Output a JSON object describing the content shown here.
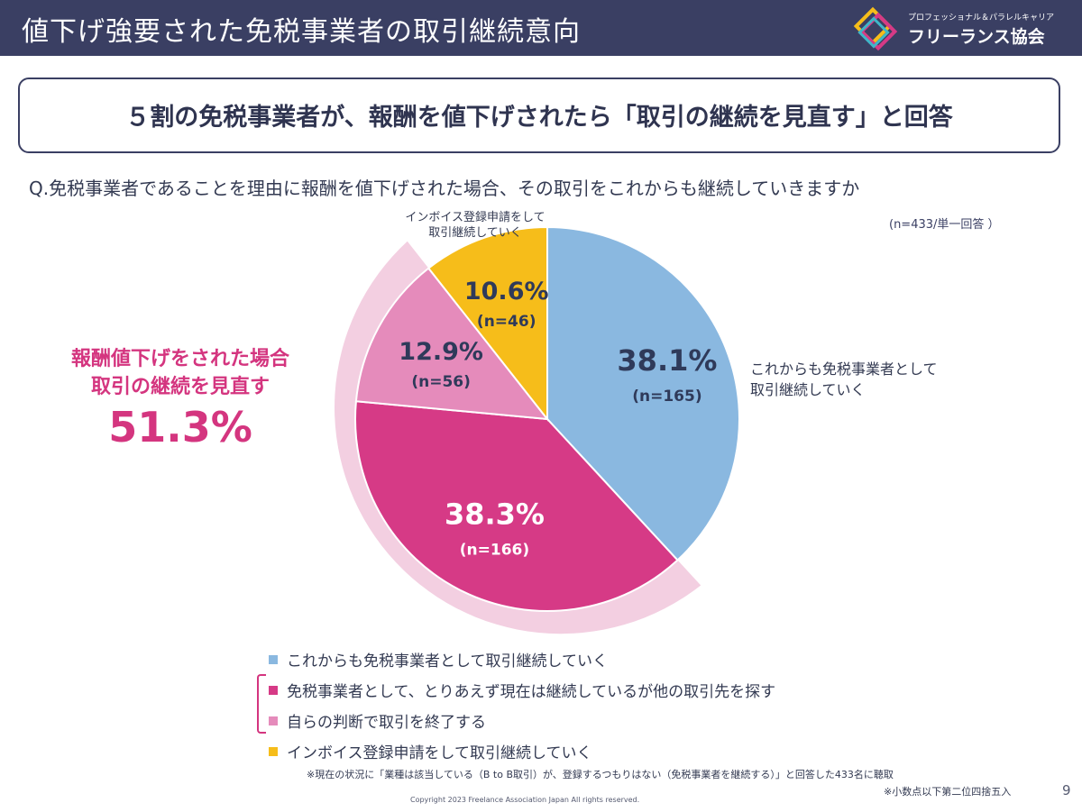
{
  "header": {
    "title": "値下げ強要された免税事業者の取引継続意向",
    "logo_sub": "プロフェッショナル＆パラレルキャリア",
    "logo_name": "フリーランス協会"
  },
  "headline": "５割の免税事業者が、報酬を値下げされたら「取引の継続を見直す」と回答",
  "question": "Q.免税事業者であることを理由に報酬を値下げされた場合、その取引をこれからも継続していきますか",
  "sample_note": "(n=433/単一回答 ）",
  "callouts": {
    "invoice": [
      "インボイス登録申請をして",
      "取引継続していく"
    ],
    "continue": [
      "これからも免税事業者として",
      "取引継続していく"
    ]
  },
  "emphasis": {
    "line1": "報酬値下げをされた場合",
    "line2": "取引の継続を見直す",
    "value": "51.3%"
  },
  "chart_data": {
    "type": "pie",
    "start": "12 o'clock, clockwise",
    "slices": [
      {
        "label": "これからも免税事業者として取引継続していく",
        "percent": 38.1,
        "pct_text": "38.1%",
        "n_text": "(n=165)",
        "color": "#8ab8e0",
        "text_color": "#2f3a5a"
      },
      {
        "label": "免税事業者として、とりあえず現在は継続しているが他の取引先を探す",
        "percent": 38.3,
        "pct_text": "38.3%",
        "n_text": "(n=166)",
        "color": "#d63a86",
        "text_color": "#ffffff"
      },
      {
        "label": "自らの判断で取引を終了する",
        "percent": 12.9,
        "pct_text": "12.9%",
        "n_text": "(n=56)",
        "color": "#e58bbb",
        "text_color": "#2f3a5a"
      },
      {
        "label": "インボイス登録申請をして取引継続していく",
        "percent": 10.6,
        "pct_text": "10.6%",
        "n_text": "(n=46)",
        "color": "#f6bd1a",
        "text_color": "#2f3a5a"
      }
    ],
    "highlight_color": "#f3cfe1"
  },
  "legend": [
    {
      "label": "これからも免税事業者として取引継続していく",
      "color": "#8ab8e0"
    },
    {
      "label": "免税事業者として、とりあえず現在は継続しているが他の取引先を探す",
      "color": "#d63a86"
    },
    {
      "label": "自らの判断で取引を終了する",
      "color": "#e58bbb"
    },
    {
      "label": "インボイス登録申請をして取引継続していく",
      "color": "#f6bd1a"
    }
  ],
  "footnotes": {
    "note1": "※現在の状況に「業種は該当している（B to B取引）が、登録するつもりはない（免税事業者を継続する）」と回答した433名に聴取",
    "note2": "※小数点以下第二位四捨五入",
    "copyright": "Copyright 2023 Freelance Association Japan  All rights reserved.",
    "page": "9"
  }
}
